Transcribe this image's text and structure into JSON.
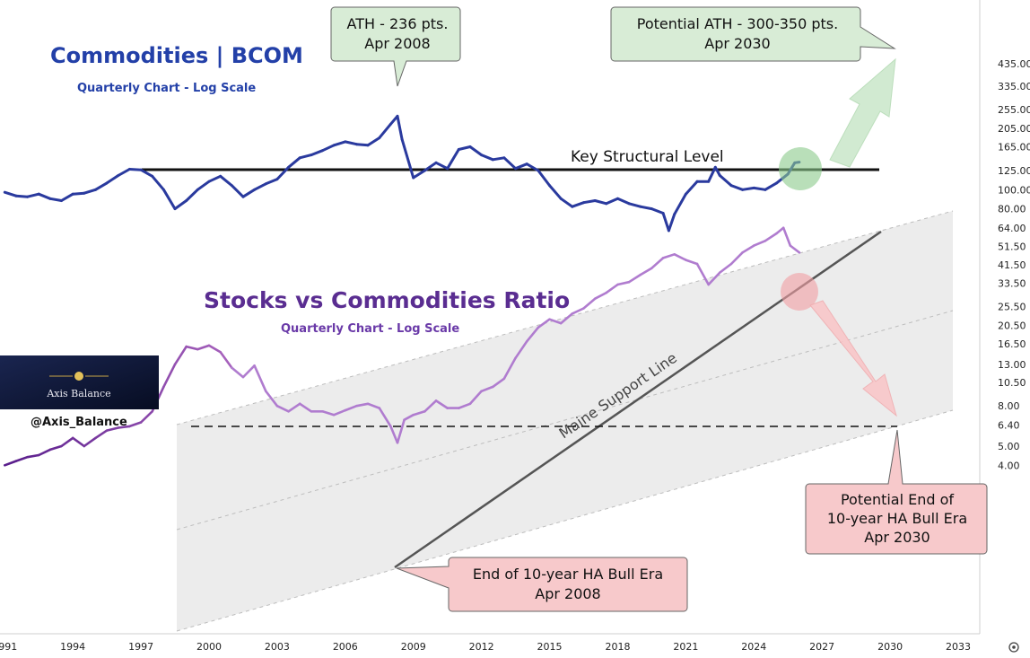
{
  "chart_data": [
    {
      "type": "line",
      "title": "Commodities | BCOM",
      "subtitle": "Quarterly Chart - Log Scale",
      "scale": "log",
      "color": "#2a3a9e",
      "x": [
        1991.0,
        1991.5,
        1992.0,
        1992.5,
        1993.0,
        1993.5,
        1994.0,
        1994.5,
        1995.0,
        1995.5,
        1996.0,
        1996.5,
        1997.0,
        1997.5,
        1998.0,
        1998.5,
        1999.0,
        1999.5,
        2000.0,
        2000.5,
        2001.0,
        2001.5,
        2002.0,
        2002.5,
        2003.0,
        2003.5,
        2004.0,
        2004.5,
        2005.0,
        2005.5,
        2006.0,
        2006.5,
        2007.0,
        2007.5,
        2008.0,
        2008.3,
        2008.5,
        2009.0,
        2009.5,
        2010.0,
        2010.5,
        2011.0,
        2011.5,
        2012.0,
        2012.5,
        2013.0,
        2013.5,
        2014.0,
        2014.5,
        2015.0,
        2015.5,
        2016.0,
        2016.5,
        2017.0,
        2017.5,
        2018.0,
        2018.5,
        2019.0,
        2019.5,
        2020.0,
        2020.25,
        2020.5,
        2021.0,
        2021.5,
        2022.0,
        2022.3,
        2022.5,
        2023.0,
        2023.5,
        2024.0,
        2024.5,
        2025.0,
        2025.5,
        2025.8,
        2026.0
      ],
      "y": [
        97,
        93,
        92,
        95,
        90,
        88,
        95,
        96,
        100,
        108,
        118,
        127,
        126,
        117,
        100,
        80,
        88,
        100,
        110,
        117,
        105,
        92,
        100,
        107,
        113,
        130,
        145,
        150,
        158,
        168,
        175,
        170,
        168,
        183,
        215,
        236,
        180,
        115,
        125,
        137,
        128,
        160,
        165,
        150,
        142,
        145,
        128,
        135,
        125,
        105,
        90,
        82,
        86,
        88,
        85,
        90,
        85,
        82,
        80,
        76,
        62,
        75,
        95,
        110,
        110,
        130,
        118,
        105,
        100,
        102,
        100,
        108,
        120,
        137,
        138
      ]
    },
    {
      "type": "line",
      "title": "Stocks vs Commodities Ratio",
      "subtitle": "Quarterly Chart - Log Scale",
      "scale": "log",
      "color": "#7b3fa8",
      "x": [
        1991.0,
        1991.5,
        1992.0,
        1992.5,
        1993.0,
        1993.5,
        1994.0,
        1994.5,
        1995.0,
        1995.5,
        1996.0,
        1996.5,
        1997.0,
        1997.5,
        1998.0,
        1998.5,
        1999.0,
        1999.5,
        2000.0,
        2000.5,
        2001.0,
        2001.5,
        2002.0,
        2002.5,
        2003.0,
        2003.5,
        2004.0,
        2004.5,
        2005.0,
        2005.5,
        2006.0,
        2006.5,
        2007.0,
        2007.5,
        2008.0,
        2008.3,
        2008.6,
        2009.0,
        2009.5,
        2010.0,
        2010.5,
        2011.0,
        2011.5,
        2012.0,
        2012.5,
        2013.0,
        2013.5,
        2014.0,
        2014.5,
        2015.0,
        2015.5,
        2016.0,
        2016.5,
        2017.0,
        2017.5,
        2018.0,
        2018.5,
        2019.0,
        2019.5,
        2020.0,
        2020.5,
        2021.0,
        2021.5,
        2022.0,
        2022.5,
        2023.0,
        2023.5,
        2024.0,
        2024.5,
        2025.0,
        2025.3,
        2025.6,
        2026.0
      ],
      "y": [
        4.0,
        4.2,
        4.4,
        4.5,
        4.8,
        5.0,
        5.5,
        5.0,
        5.5,
        6.0,
        6.2,
        6.3,
        6.6,
        7.5,
        10.0,
        13.0,
        16.0,
        15.5,
        16.2,
        15.0,
        12.5,
        11.2,
        12.8,
        9.5,
        8.0,
        7.5,
        8.2,
        7.5,
        7.5,
        7.2,
        7.6,
        8.0,
        8.2,
        7.8,
        6.3,
        5.2,
        6.8,
        7.2,
        7.5,
        8.5,
        7.8,
        7.8,
        8.2,
        9.5,
        10.0,
        11.0,
        14.0,
        17.0,
        20.0,
        22.0,
        21.0,
        23.5,
        25.0,
        28.0,
        30.0,
        33.0,
        34.0,
        37.0,
        40.0,
        45.0,
        47.0,
        44.0,
        42.0,
        33.0,
        38.0,
        42.0,
        48.0,
        52.0,
        55.0,
        60.0,
        64.0,
        52.0,
        48.0
      ]
    }
  ],
  "y_axis": {
    "ticks": [
      "435.00",
      "335.00",
      "255.00",
      "205.00",
      "165.00",
      "125.00",
      "100.00",
      "80.00",
      "64.00",
      "51.50",
      "41.50",
      "33.50",
      "25.50",
      "20.50",
      "16.50",
      "13.00",
      "10.50",
      "8.00",
      "6.40",
      "5.00",
      "4.00"
    ]
  },
  "x_axis": {
    "ticks": [
      "1991",
      "1994",
      "1997",
      "2000",
      "2003",
      "2006",
      "2009",
      "2012",
      "2015",
      "2018",
      "2021",
      "2024",
      "2027",
      "2030",
      "2033"
    ]
  },
  "annotations": {
    "ath": [
      "ATH - 236 pts.",
      "Apr 2008"
    ],
    "potential_ath": [
      "Potential ATH - 300-350 pts.",
      "Apr 2030"
    ],
    "key_level": "Key Structural Level",
    "support_line": "Maine Support Line",
    "end_bull": [
      "End of 10-year HA Bull Era",
      "Apr 2008"
    ],
    "potential_end": [
      "Potential End of",
      "10-year HA Bull Era",
      "Apr 2030"
    ]
  },
  "brand": {
    "name": "Axis Balance",
    "handle": "@Axis_Balance"
  },
  "colors": {
    "bcom": "#2a3a9e",
    "ratio": "#7b3fa8",
    "channel": "#e9e9e9",
    "green_box": "#d5ecd5",
    "red_box": "#f7c9cb",
    "brand_bg": "#0b1533"
  }
}
